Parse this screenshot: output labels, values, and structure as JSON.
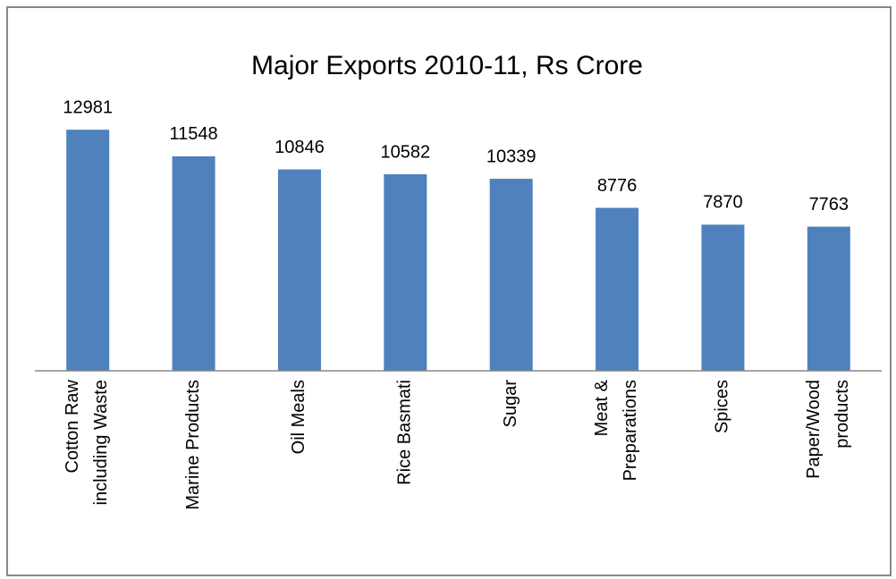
{
  "chart_data": {
    "type": "bar",
    "title": "Major Exports 2010-11, Rs Crore",
    "categories": [
      "Cotton Raw\nincluding Waste",
      "Marine Products",
      "Oil Meals",
      "Rice Basmati",
      "Sugar",
      "Meat &\nPreparations",
      "Spices",
      "Paper/Wood\nproducts"
    ],
    "values": [
      12981,
      11548,
      10846,
      10582,
      10339,
      8776,
      7870,
      7763
    ],
    "color": "#4f81bd",
    "ylim": [
      0,
      14000
    ]
  }
}
